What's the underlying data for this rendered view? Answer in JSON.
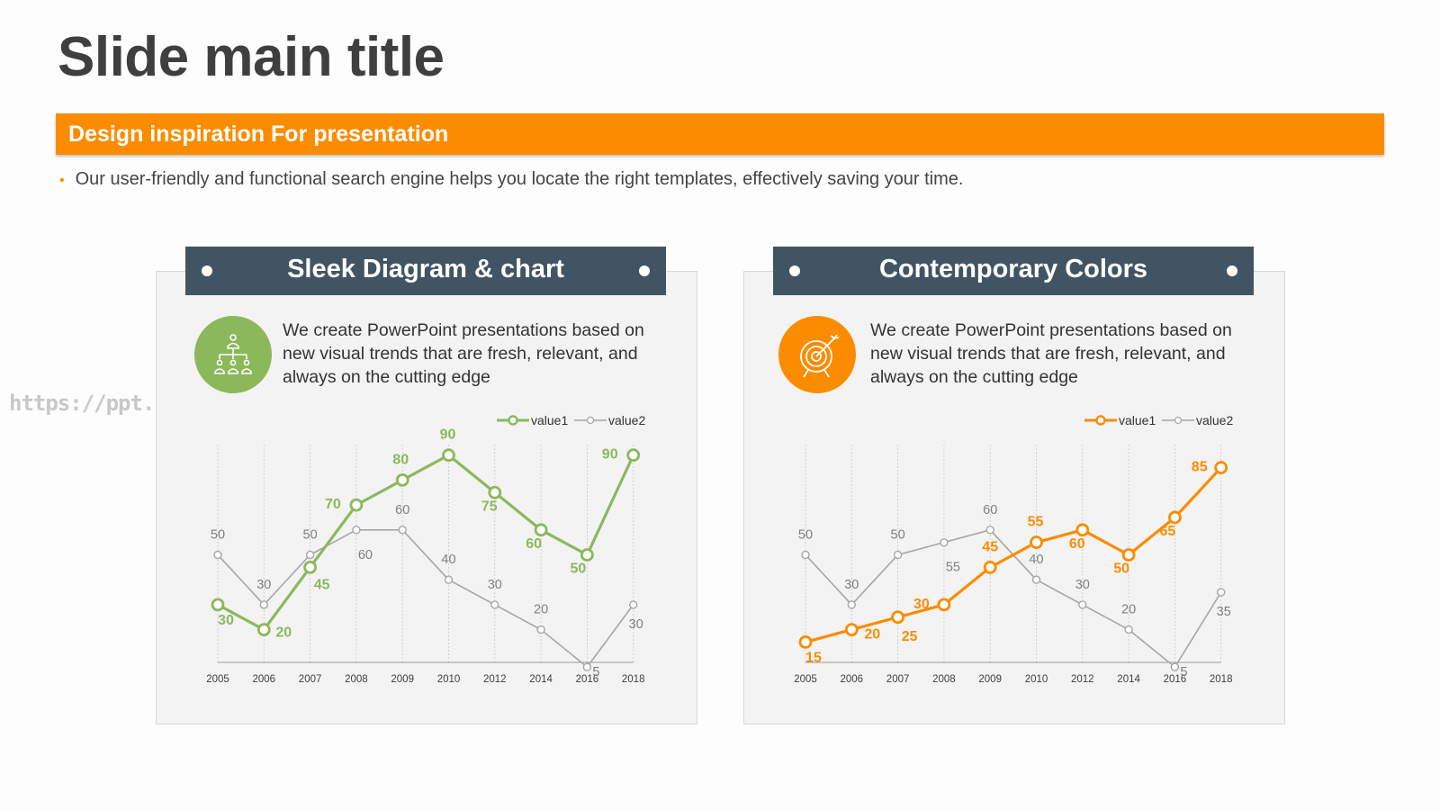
{
  "slide": {
    "title": "Slide main title",
    "banner": "Design inspiration For presentation",
    "bullet": "Our user-friendly and functional search engine helps you locate the right templates, effectively saving your time.",
    "watermark": "https://ppt.pkll.de"
  },
  "colors": {
    "orange": "#fb8c00",
    "green": "#8cb85c",
    "navy": "#415463",
    "gray": "#a6a6a6"
  },
  "cards": [
    {
      "header": "Sleek Diagram & chart",
      "description": "We create PowerPoint presentations based on new visual trends that are fresh, relevant, and always on the cutting edge",
      "icon": "organization-chart-icon",
      "accent": "#8cb85c"
    },
    {
      "header": "Contemporary Colors",
      "description": "We create PowerPoint presentations based on new visual trends that are fresh, relevant, and always on the cutting edge",
      "icon": "target-icon",
      "accent": "#fb8c00"
    }
  ],
  "chart_data": [
    {
      "type": "line",
      "categories": [
        "2005",
        "2006",
        "2007",
        "2008",
        "2009",
        "2010",
        "2012",
        "2014",
        "2016",
        "2018"
      ],
      "series": [
        {
          "name": "value1",
          "color": "#8cb85c",
          "values": [
            30,
            20,
            45,
            70,
            80,
            90,
            75,
            60,
            50,
            90
          ]
        },
        {
          "name": "value2",
          "color": "#a6a6a6",
          "values": [
            50,
            30,
            50,
            60,
            60,
            40,
            30,
            20,
            5,
            30
          ]
        }
      ],
      "legend": "top-right",
      "ylim": [
        0,
        100
      ],
      "grid": "vertical-dashed"
    },
    {
      "type": "line",
      "categories": [
        "2005",
        "2006",
        "2007",
        "2008",
        "2009",
        "2010",
        "2012",
        "2014",
        "2016",
        "2018"
      ],
      "series": [
        {
          "name": "value1",
          "color": "#fb8c00",
          "values": [
            15,
            20,
            25,
            30,
            45,
            55,
            60,
            50,
            65,
            85
          ]
        },
        {
          "name": "value2",
          "color": "#a6a6a6",
          "values": [
            50,
            30,
            50,
            55,
            60,
            40,
            30,
            20,
            5,
            35
          ]
        }
      ],
      "legend": "top-right",
      "ylim": [
        0,
        100
      ],
      "grid": "vertical-dashed"
    }
  ]
}
